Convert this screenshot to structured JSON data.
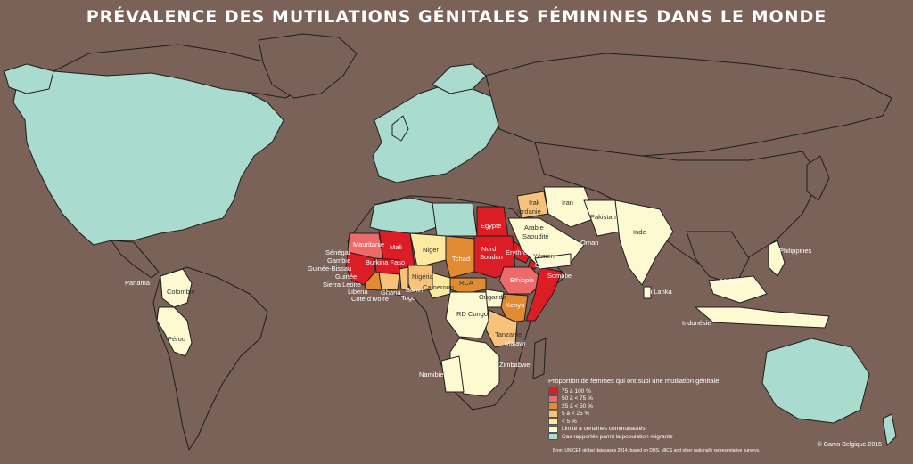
{
  "title": "PRÉVALENCE DES MUTILATIONS GÉNITALES FÉMININES DANS LE MONDE",
  "colors": {
    "ocean": "#7a6258",
    "land": "#7a6258",
    "migrant": "#a9dccf",
    "limited": "#fdf9d0",
    "lt5": "#fdeaa0",
    "p5_25": "#f7c37a",
    "p25_50": "#e38b33",
    "p50_75": "#ec6a6a",
    "p75_100": "#dd1d25",
    "border": "#1e1e1e"
  },
  "labels": {
    "senegal": "Sénégal",
    "gambie": "Gambie",
    "guinee_bissau": "Guinée-Bissau",
    "guinee": "Guinée",
    "sierra_leone": "Sierra Leone",
    "liberia": "Libéria",
    "cote_ivoire": "Côte d'Ivoire",
    "ghana": "Ghana",
    "togo": "Togo",
    "benin": "Bénin",
    "mauritanie": "Mauritanie",
    "mali": "Mali",
    "burkina": "Burkina Faso",
    "niger": "Niger",
    "nigeria": "Nigéria",
    "cameroun": "Cameroun",
    "tchad": "Tchad",
    "rca": "RCA",
    "rdcongo": "RD Congo",
    "ouganda": "Ouganda",
    "kenya": "Kenya",
    "tanzanie": "Tanzanie",
    "malawi": "Malawi",
    "zimbabwe": "Zimbabwe",
    "namibie": "Namibie",
    "egypte": "Egypte",
    "soudan": "Nord Soudan",
    "erythree": "Erythrée",
    "ethiopie": "Ethiopie",
    "djibouti": "Djibouti",
    "somalie": "Somalie",
    "yemen": "Yémen",
    "oman": "Oman",
    "arabie": "Arabie Saoudite",
    "irak": "Irak",
    "jordanie": "Jordanie",
    "iran": "Iran",
    "pakistan": "Pakistan",
    "inde": "Inde",
    "sri_lanka": "Sri Lanka",
    "malaisie": "Malaisie",
    "indonesie": "Indonésie",
    "philippines": "Philippines",
    "panama": "Panama",
    "colombie": "Colombie",
    "perou": "Pérou"
  },
  "legend": {
    "title": "Proportion de femmes qui ont subi une mutilation génitale",
    "items": [
      {
        "label": "75 à 100 %",
        "color": "#dd1d25"
      },
      {
        "label": "50 à < 75 %",
        "color": "#ec6a6a"
      },
      {
        "label": "25 à < 50 %",
        "color": "#e38b33"
      },
      {
        "label": "5 à < 25 %",
        "color": "#f7c37a"
      },
      {
        "label": "< 5 %",
        "color": "#fdeaa0"
      },
      {
        "label": "Limité à certaines communautés",
        "color": "#fdf9d0"
      },
      {
        "label": "Cas rapportés parmi la population migrante",
        "color": "#a9dccf"
      }
    ]
  },
  "source": "Bron: UNICEF global databases 2014, based on DHS, MICS and other nationally representative surveys.",
  "copyright": "© Gams Belgique 2015"
}
